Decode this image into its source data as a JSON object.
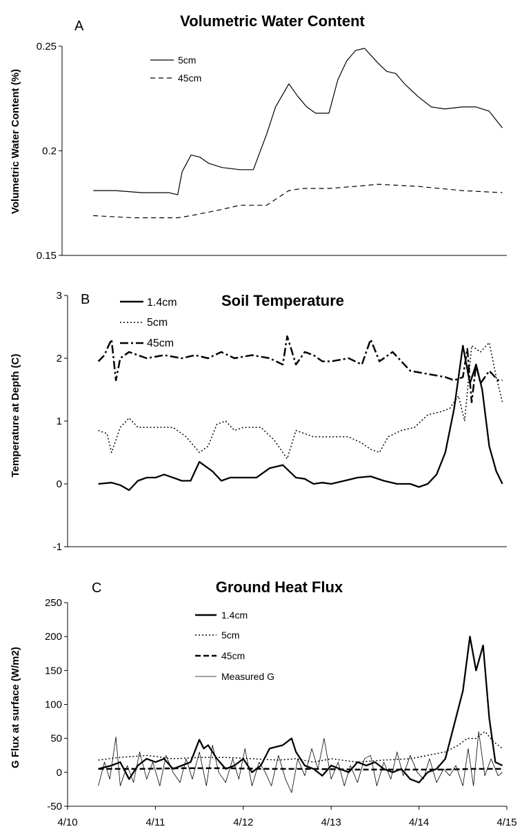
{
  "chart_data": [
    {
      "type": "line",
      "panel_label": "A",
      "title": "Volumetric Water Content",
      "ylabel": "Volumetric Water Content (%)",
      "ylim": [
        0.15,
        0.25
      ],
      "yticks": [
        "0.15",
        "0.2",
        "0.25"
      ],
      "xlim": [
        0,
        5
      ],
      "legend_position": "top-left",
      "series": [
        {
          "name": "5cm",
          "style": "solid",
          "x": [
            0.35,
            0.6,
            0.9,
            1.2,
            1.3,
            1.35,
            1.45,
            1.55,
            1.65,
            1.8,
            2.0,
            2.15,
            2.3,
            2.4,
            2.55,
            2.65,
            2.75,
            2.85,
            3.0,
            3.1,
            3.2,
            3.3,
            3.4,
            3.55,
            3.65,
            3.75,
            3.85,
            4.0,
            4.15,
            4.3,
            4.5,
            4.65,
            4.8,
            4.95
          ],
          "y": [
            0.181,
            0.181,
            0.18,
            0.18,
            0.179,
            0.19,
            0.198,
            0.197,
            0.194,
            0.192,
            0.191,
            0.191,
            0.208,
            0.221,
            0.232,
            0.226,
            0.221,
            0.218,
            0.218,
            0.234,
            0.243,
            0.248,
            0.249,
            0.242,
            0.238,
            0.237,
            0.232,
            0.226,
            0.221,
            0.22,
            0.221,
            0.221,
            0.219,
            0.211
          ]
        },
        {
          "name": "45cm",
          "style": "dashed",
          "x": [
            0.35,
            0.8,
            1.3,
            1.45,
            1.8,
            2.0,
            2.3,
            2.55,
            2.7,
            3.0,
            3.3,
            3.55,
            4.0,
            4.5,
            4.95
          ],
          "y": [
            0.169,
            0.168,
            0.168,
            0.169,
            0.172,
            0.174,
            0.174,
            0.181,
            0.182,
            0.182,
            0.183,
            0.184,
            0.183,
            0.181,
            0.18
          ]
        }
      ]
    },
    {
      "type": "line",
      "panel_label": "B",
      "title": "Soil Temperature",
      "ylabel": "Temperature at Depth (C)",
      "ylim": [
        -1,
        3
      ],
      "yticks": [
        "-1",
        "0",
        "1",
        "2",
        "3"
      ],
      "xlim": [
        0,
        5
      ],
      "legend_position": "top-left",
      "series": [
        {
          "name": "1.4cm",
          "style": "solid-thick",
          "x": [
            0.35,
            0.5,
            0.6,
            0.7,
            0.8,
            0.9,
            1.0,
            1.1,
            1.2,
            1.3,
            1.4,
            1.5,
            1.55,
            1.65,
            1.75,
            1.85,
            2.0,
            2.15,
            2.3,
            2.45,
            2.6,
            2.7,
            2.8,
            2.9,
            3.0,
            3.15,
            3.3,
            3.45,
            3.6,
            3.75,
            3.9,
            4.0,
            4.1,
            4.2,
            4.3,
            4.4,
            4.5,
            4.58,
            4.65,
            4.72,
            4.8,
            4.88,
            4.95
          ],
          "y": [
            0.0,
            0.02,
            -0.02,
            -0.1,
            0.05,
            0.1,
            0.1,
            0.15,
            0.1,
            0.05,
            0.05,
            0.35,
            0.3,
            0.2,
            0.05,
            0.1,
            0.1,
            0.1,
            0.25,
            0.3,
            0.1,
            0.08,
            0.0,
            0.02,
            0.0,
            0.05,
            0.1,
            0.12,
            0.05,
            0.0,
            0.0,
            -0.05,
            0.0,
            0.15,
            0.5,
            1.2,
            2.2,
            1.6,
            1.9,
            1.5,
            0.6,
            0.2,
            0.0
          ]
        },
        {
          "name": "5cm",
          "style": "dotted",
          "x": [
            0.35,
            0.45,
            0.5,
            0.6,
            0.7,
            0.8,
            1.0,
            1.2,
            1.35,
            1.5,
            1.6,
            1.7,
            1.8,
            1.9,
            2.0,
            2.2,
            2.35,
            2.5,
            2.6,
            2.7,
            2.8,
            3.0,
            3.2,
            3.35,
            3.45,
            3.55,
            3.65,
            3.8,
            3.95,
            4.1,
            4.25,
            4.35,
            4.45,
            4.52,
            4.6,
            4.7,
            4.8,
            4.88,
            4.95
          ],
          "y": [
            0.85,
            0.8,
            0.5,
            0.9,
            1.05,
            0.9,
            0.9,
            0.9,
            0.75,
            0.5,
            0.6,
            0.95,
            1.0,
            0.85,
            0.9,
            0.9,
            0.7,
            0.4,
            0.85,
            0.8,
            0.75,
            0.75,
            0.75,
            0.65,
            0.55,
            0.5,
            0.75,
            0.85,
            0.9,
            1.1,
            1.15,
            1.2,
            1.4,
            1.0,
            2.2,
            2.1,
            2.25,
            1.7,
            1.3
          ]
        },
        {
          "name": "45cm",
          "style": "dash-dot",
          "x": [
            0.35,
            0.42,
            0.45,
            0.5,
            0.55,
            0.6,
            0.7,
            0.9,
            1.1,
            1.3,
            1.45,
            1.6,
            1.75,
            1.9,
            2.1,
            2.3,
            2.45,
            2.5,
            2.6,
            2.7,
            2.8,
            2.9,
            3.0,
            3.2,
            3.35,
            3.45,
            3.55,
            3.7,
            3.9,
            4.1,
            4.3,
            4.4,
            4.5,
            4.55,
            4.6,
            4.65,
            4.7,
            4.8,
            4.9,
            4.95
          ],
          "y": [
            1.95,
            2.05,
            2.15,
            2.3,
            1.65,
            2.0,
            2.1,
            2.0,
            2.05,
            2.0,
            2.05,
            2.0,
            2.1,
            2.0,
            2.05,
            2.0,
            1.9,
            2.35,
            1.9,
            2.1,
            2.05,
            1.95,
            1.95,
            2.0,
            1.9,
            2.3,
            1.95,
            2.1,
            1.8,
            1.75,
            1.7,
            1.65,
            1.7,
            2.15,
            1.3,
            1.9,
            1.6,
            1.8,
            1.65,
            1.65
          ]
        }
      ]
    },
    {
      "type": "line",
      "panel_label": "C",
      "title": "Ground Heat Flux",
      "ylabel": "G Flux at surface (W/m2)",
      "ylim": [
        -50,
        250
      ],
      "yticks": [
        "-50",
        "0",
        "50",
        "100",
        "150",
        "200",
        "250"
      ],
      "xlim": [
        0,
        5
      ],
      "xticks": [
        "4/10",
        "4/11",
        "4/12",
        "4/13",
        "4/14",
        "4/15"
      ],
      "legend_position": "top-center",
      "series": [
        {
          "name": "1.4cm",
          "style": "solid-thick",
          "x": [
            0.35,
            0.5,
            0.6,
            0.7,
            0.8,
            0.9,
            1.0,
            1.1,
            1.2,
            1.3,
            1.4,
            1.5,
            1.55,
            1.6,
            1.7,
            1.8,
            1.9,
            2.0,
            2.1,
            2.2,
            2.3,
            2.45,
            2.55,
            2.6,
            2.7,
            2.8,
            2.9,
            3.0,
            3.1,
            3.2,
            3.3,
            3.4,
            3.5,
            3.6,
            3.7,
            3.8,
            3.9,
            4.0,
            4.1,
            4.2,
            4.3,
            4.4,
            4.5,
            4.58,
            4.65,
            4.73,
            4.8,
            4.87,
            4.95
          ],
          "y": [
            5,
            10,
            15,
            -10,
            10,
            20,
            15,
            20,
            5,
            10,
            15,
            48,
            35,
            40,
            20,
            5,
            10,
            20,
            0,
            10,
            35,
            40,
            50,
            30,
            10,
            5,
            -5,
            10,
            5,
            0,
            15,
            10,
            15,
            5,
            0,
            5,
            -10,
            -15,
            0,
            5,
            20,
            70,
            120,
            200,
            150,
            187,
            80,
            15,
            10
          ]
        },
        {
          "name": "5cm",
          "style": "dotted",
          "x": [
            0.35,
            0.6,
            0.9,
            1.2,
            1.5,
            1.8,
            2.1,
            2.4,
            2.6,
            2.8,
            3.0,
            3.3,
            3.6,
            3.9,
            4.1,
            4.3,
            4.45,
            4.55,
            4.65,
            4.75,
            4.85,
            4.95
          ],
          "y": [
            18,
            22,
            25,
            20,
            22,
            22,
            20,
            18,
            20,
            15,
            20,
            15,
            18,
            20,
            25,
            30,
            40,
            50,
            50,
            60,
            45,
            35
          ]
        },
        {
          "name": "45cm",
          "style": "dash-thick",
          "x": [
            0.35,
            0.8,
            1.3,
            1.8,
            2.3,
            2.8,
            3.3,
            3.8,
            4.3,
            4.6,
            4.95
          ],
          "y": [
            5,
            5,
            6,
            6,
            5,
            5,
            4,
            4,
            4,
            5,
            5
          ]
        },
        {
          "name": "Measured G",
          "style": "solid-thin",
          "x": [
            0.35,
            0.42,
            0.48,
            0.55,
            0.6,
            0.68,
            0.75,
            0.82,
            0.9,
            0.97,
            1.05,
            1.12,
            1.2,
            1.28,
            1.35,
            1.42,
            1.5,
            1.58,
            1.65,
            1.72,
            1.8,
            1.88,
            1.95,
            2.02,
            2.1,
            2.18,
            2.25,
            2.32,
            2.4,
            2.48,
            2.55,
            2.62,
            2.7,
            2.78,
            2.85,
            2.92,
            3.0,
            3.08,
            3.15,
            3.22,
            3.3,
            3.38,
            3.45,
            3.52,
            3.6,
            3.68,
            3.75,
            3.82,
            3.9,
            3.98,
            4.05,
            4.12,
            4.2,
            4.28,
            4.35,
            4.42,
            4.5,
            4.56,
            4.62,
            4.68,
            4.75,
            4.82,
            4.9,
            4.95
          ],
          "y": [
            -20,
            15,
            -10,
            52,
            -20,
            10,
            -15,
            30,
            -10,
            15,
            -20,
            25,
            0,
            -15,
            20,
            -10,
            30,
            -20,
            40,
            0,
            -15,
            20,
            -10,
            35,
            -20,
            15,
            0,
            -20,
            25,
            -10,
            -30,
            20,
            -5,
            35,
            5,
            50,
            -10,
            15,
            -20,
            10,
            -15,
            20,
            25,
            -20,
            15,
            -10,
            30,
            -5,
            25,
            0,
            -10,
            20,
            -15,
            5,
            -5,
            10,
            -20,
            35,
            -20,
            60,
            -5,
            20,
            -5,
            0
          ]
        }
      ]
    }
  ]
}
